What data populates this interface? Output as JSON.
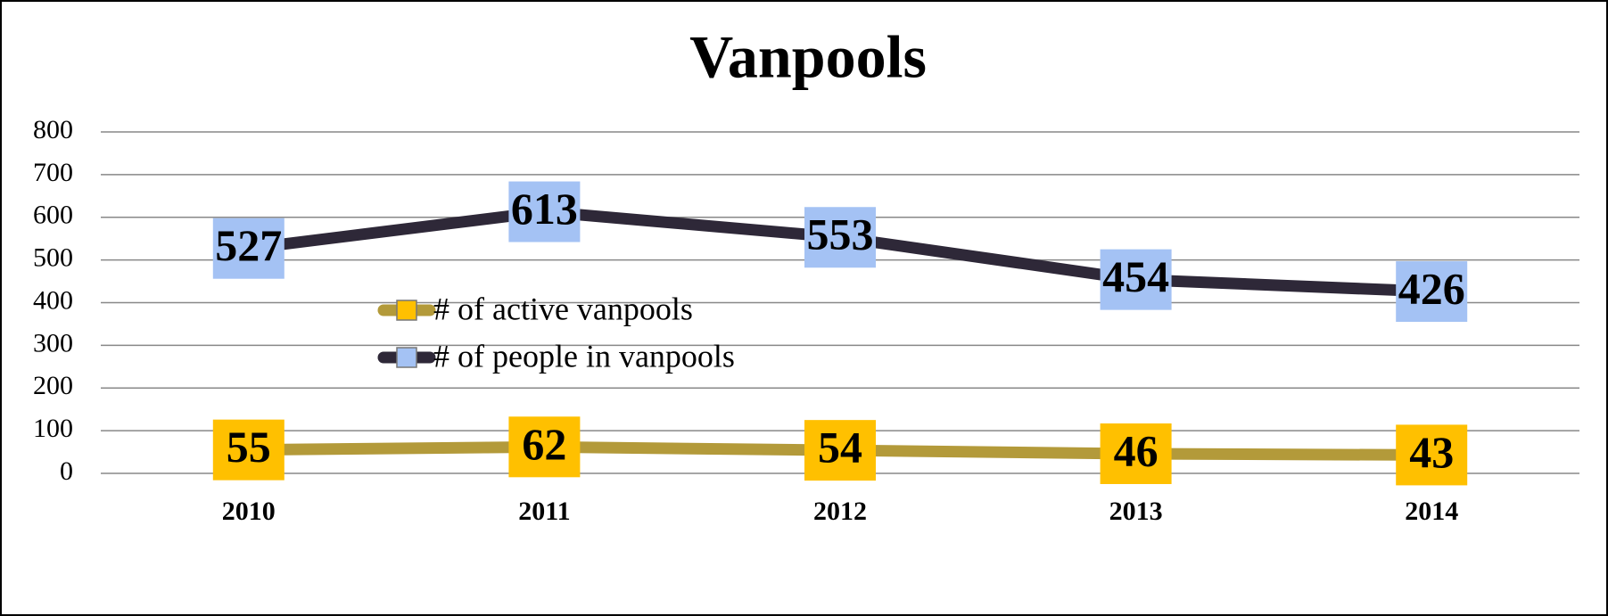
{
  "chart_data": {
    "type": "line",
    "title": "Vanpools",
    "categories": [
      "2010",
      "2011",
      "2012",
      "2013",
      "2014"
    ],
    "series": [
      {
        "name": "# of active vanpools",
        "color": "#b39a3a",
        "label_color": "#ffc000",
        "values": [
          55,
          62,
          54,
          46,
          43
        ]
      },
      {
        "name": "# of people in vanpools",
        "color": "#2e2838",
        "label_color": "#a4c2f4",
        "values": [
          527,
          613,
          553,
          454,
          426
        ]
      }
    ],
    "ylim": [
      0,
      800
    ],
    "yticks": [
      0,
      100,
      200,
      300,
      400,
      500,
      600,
      700,
      800
    ],
    "grid": true
  }
}
